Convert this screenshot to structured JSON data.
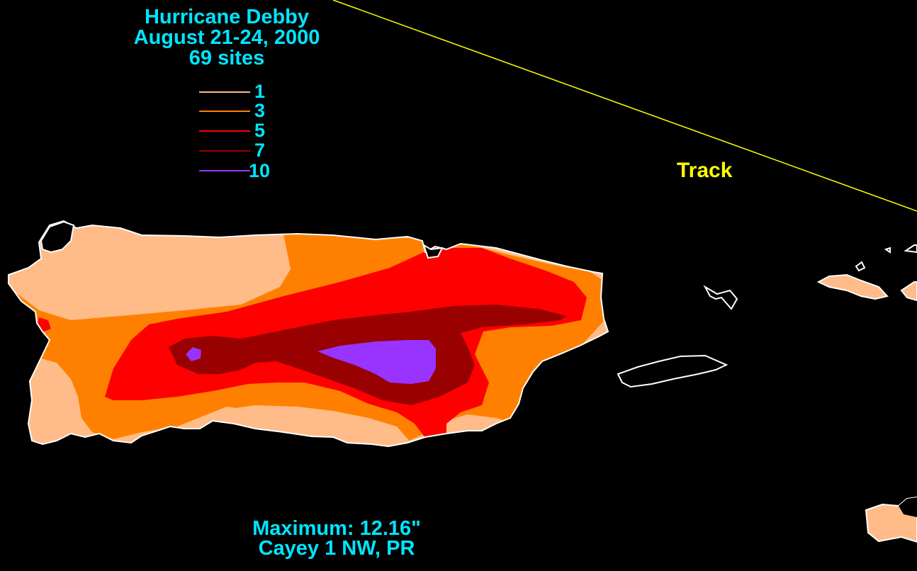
{
  "title": {
    "storm": "Hurricane Debby",
    "dates": "August 21-24, 2000",
    "sites": "69 sites"
  },
  "legend": [
    {
      "label": "1",
      "color": "#ffbb88"
    },
    {
      "label": "3",
      "color": "#ff8000"
    },
    {
      "label": "5",
      "color": "#ff0000"
    },
    {
      "label": "7",
      "color": "#990000"
    },
    {
      "label": "10",
      "color": "#9933ff"
    }
  ],
  "track": {
    "label": "Track",
    "color": "#ffff00"
  },
  "maximum": {
    "value_text": "Maximum:  12.16\"",
    "location": "Cayey 1 NW, PR"
  },
  "colors": {
    "background": "#000000",
    "text": "#00e5ff",
    "coastline": "#ffffff"
  }
}
